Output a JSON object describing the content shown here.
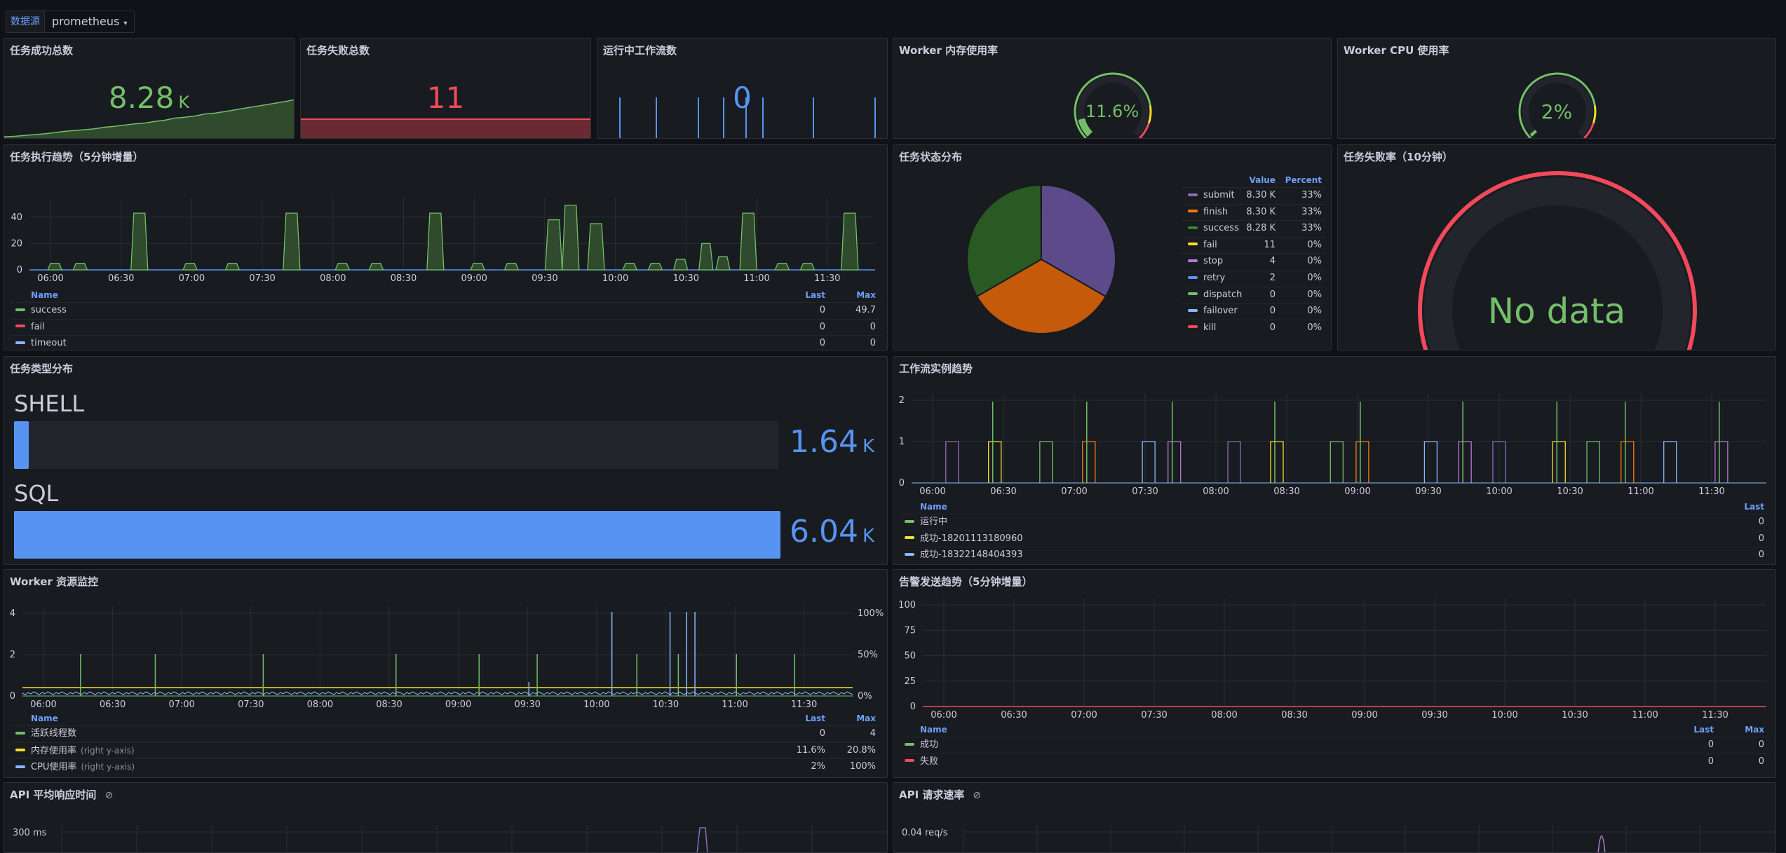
{
  "toolbar": {
    "datasource_label": "数据源",
    "datasource_value": "prometheus"
  },
  "colors": {
    "green": "#73bf69",
    "red": "#f2495c",
    "blue": "#5794f2",
    "yellow": "#fade2a",
    "orange": "#ff780a",
    "purple": "#b877d9",
    "violet": "#8f6bb8",
    "darkgreen": "#37872d"
  },
  "panels": {
    "success_total": {
      "title": "任务成功总数",
      "value": "8.28",
      "unit": "K",
      "sparkline": [
        0.05,
        0.06,
        0.08,
        0.1,
        0.12,
        0.15,
        0.18,
        0.2,
        0.22,
        0.24,
        0.28,
        0.3,
        0.33,
        0.36,
        0.38,
        0.42,
        0.45,
        0.5,
        0.52,
        0.55,
        0.6,
        0.62,
        0.66,
        0.7,
        0.74,
        0.78,
        0.82,
        0.86,
        0.9,
        0.95
      ]
    },
    "fail_total": {
      "title": "任务失败总数",
      "value": "11"
    },
    "running_workflows": {
      "title": "运行中工作流数",
      "value": "0",
      "spikes": [
        0.06,
        0.19,
        0.34,
        0.43,
        0.51,
        0.57,
        0.75,
        0.97
      ]
    },
    "worker_mem": {
      "title": "Worker 内存使用率",
      "value": "11.6%",
      "fraction": 0.116
    },
    "worker_cpu": {
      "title": "Worker CPU 使用率",
      "value": "2%",
      "fraction": 0.02
    },
    "task_trend": {
      "title": "任务执行趋势（5分钟增量）",
      "legend": {
        "name_header": "Name",
        "last_header": "Last",
        "max_header": "Max",
        "rows": [
          {
            "name": "success",
            "color": "#73bf69",
            "last": "0",
            "max": "49.7"
          },
          {
            "name": "fail",
            "color": "#f2495c",
            "last": "0",
            "max": "0"
          },
          {
            "name": "timeout",
            "color": "#8ab8ff",
            "last": "0",
            "max": "0"
          }
        ]
      }
    },
    "task_status": {
      "title": "任务状态分布",
      "value_header": "Value",
      "percent_header": "Percent",
      "rows": [
        {
          "name": "submit",
          "color": "#8f6bb8",
          "value": "8.30 K",
          "percent": "33%"
        },
        {
          "name": "finish",
          "color": "#ff780a",
          "value": "8.30 K",
          "percent": "33%"
        },
        {
          "name": "success",
          "color": "#37872d",
          "value": "8.28 K",
          "percent": "33%"
        },
        {
          "name": "fail",
          "color": "#fade2a",
          "value": "11",
          "percent": "0%"
        },
        {
          "name": "stop",
          "color": "#b877d9",
          "value": "4",
          "percent": "0%"
        },
        {
          "name": "retry",
          "color": "#5794f2",
          "value": "2",
          "percent": "0%"
        },
        {
          "name": "dispatch",
          "color": "#73bf69",
          "value": "0",
          "percent": "0%"
        },
        {
          "name": "failover",
          "color": "#8ab8ff",
          "value": "0",
          "percent": "0%"
        },
        {
          "name": "kill",
          "color": "#f2495c",
          "value": "0",
          "percent": "0%"
        }
      ]
    },
    "fail_rate": {
      "title": "任务失败率（10分钟）",
      "value": "No data"
    },
    "task_type": {
      "title": "任务类型分布",
      "items": [
        {
          "label": "SHELL",
          "value": "1.64",
          "unit": "K",
          "fraction": 0.019
        },
        {
          "label": "SQL",
          "value": "6.04",
          "unit": "K",
          "fraction": 1.0
        }
      ]
    },
    "workflow_trend": {
      "title": "工作流实例趋势",
      "legend": {
        "name_header": "Name",
        "last_header": "Last",
        "rows": [
          {
            "name": "运行中",
            "color": "#73bf69",
            "last": "0"
          },
          {
            "name": "成功-18201113180960",
            "color": "#fade2a",
            "last": "0"
          },
          {
            "name": "成功-18322148404393",
            "color": "#8ab8ff",
            "last": "0"
          }
        ]
      }
    },
    "worker_resources": {
      "title": "Worker 资源监控",
      "legend": {
        "name_header": "Name",
        "last_header": "Last",
        "max_header": "Max",
        "rows": [
          {
            "name": "活跃线程数",
            "suffix": "",
            "color": "#73bf69",
            "last": "0",
            "max": "4"
          },
          {
            "name": "内存使用率",
            "suffix": "(right y-axis)",
            "color": "#fade2a",
            "last": "11.6%",
            "max": "20.8%"
          },
          {
            "name": "CPU使用率",
            "suffix": "(right y-axis)",
            "color": "#8ab8ff",
            "last": "2%",
            "max": "100%"
          }
        ]
      }
    },
    "alert_trend": {
      "title": "告警发送趋势（5分钟增量）",
      "legend": {
        "name_header": "Name",
        "last_header": "Last",
        "max_header": "Max",
        "rows": [
          {
            "name": "成功",
            "color": "#73bf69",
            "last": "0",
            "max": "0"
          },
          {
            "name": "失败",
            "color": "#f2495c",
            "last": "0",
            "max": "0"
          }
        ]
      }
    },
    "api_latency": {
      "title": "API 平均响应时间",
      "ytick": "300 ms"
    },
    "api_rate": {
      "title": "API 请求速率",
      "ytick": "0.04 req/s"
    }
  },
  "chart_data": [
    {
      "type": "line",
      "panel": "task_trend",
      "x": [
        "06:00",
        "06:30",
        "07:00",
        "07:30",
        "08:00",
        "08:30",
        "09:00",
        "09:30",
        "10:00",
        "10:30",
        "11:00",
        "11:30"
      ],
      "yticks": [
        0,
        20,
        40
      ],
      "ylim": [
        0,
        50
      ],
      "series": [
        {
          "name": "success",
          "peaks": [
            [
              0.03,
              5
            ],
            [
              0.06,
              5
            ],
            [
              0.13,
              43
            ],
            [
              0.19,
              5
            ],
            [
              0.24,
              5
            ],
            [
              0.31,
              43
            ],
            [
              0.37,
              5
            ],
            [
              0.41,
              5
            ],
            [
              0.48,
              43
            ],
            [
              0.53,
              5
            ],
            [
              0.57,
              5
            ],
            [
              0.62,
              38
            ],
            [
              0.64,
              49
            ],
            [
              0.67,
              35
            ],
            [
              0.71,
              5
            ],
            [
              0.74,
              5
            ],
            [
              0.77,
              8
            ],
            [
              0.8,
              20
            ],
            [
              0.82,
              10
            ],
            [
              0.85,
              43
            ],
            [
              0.89,
              5
            ],
            [
              0.92,
              5
            ],
            [
              0.97,
              43
            ]
          ]
        },
        {
          "name": "fail",
          "peaks": []
        },
        {
          "name": "timeout",
          "peaks": []
        }
      ]
    },
    {
      "type": "pie",
      "panel": "task_status",
      "slices": [
        {
          "name": "submit",
          "value": 8300
        },
        {
          "name": "finish",
          "value": 8300
        },
        {
          "name": "success",
          "value": 8280
        },
        {
          "name": "fail",
          "value": 11
        },
        {
          "name": "stop",
          "value": 4
        },
        {
          "name": "retry",
          "value": 2
        },
        {
          "name": "dispatch",
          "value": 0
        },
        {
          "name": "failover",
          "value": 0
        },
        {
          "name": "kill",
          "value": 0
        }
      ]
    },
    {
      "type": "bar",
      "panel": "task_type",
      "categories": [
        "SHELL",
        "SQL"
      ],
      "values": [
        1640,
        6040
      ]
    },
    {
      "type": "line",
      "panel": "workflow_trend",
      "x": [
        "06:00",
        "06:30",
        "07:00",
        "07:30",
        "08:00",
        "08:30",
        "09:00",
        "09:30",
        "10:00",
        "10:30",
        "11:00",
        "11:30"
      ],
      "yticks": [
        0,
        1,
        2
      ],
      "ylim": [
        0,
        2
      ]
    },
    {
      "type": "line",
      "panel": "worker_resources",
      "x": [
        "06:00",
        "06:30",
        "07:00",
        "07:30",
        "08:00",
        "08:30",
        "09:00",
        "09:30",
        "10:00",
        "10:30",
        "11:00",
        "11:30"
      ],
      "yticks": [
        0,
        2,
        4
      ],
      "ylim": [
        0,
        4
      ],
      "y2ticks": [
        "0%",
        "50%",
        "100%"
      ]
    },
    {
      "type": "line",
      "panel": "alert_trend",
      "x": [
        "06:00",
        "06:30",
        "07:00",
        "07:30",
        "08:00",
        "08:30",
        "09:00",
        "09:30",
        "10:00",
        "10:30",
        "11:00",
        "11:30"
      ],
      "yticks": [
        0,
        25,
        50,
        75,
        100
      ],
      "ylim": [
        0,
        100
      ]
    }
  ]
}
